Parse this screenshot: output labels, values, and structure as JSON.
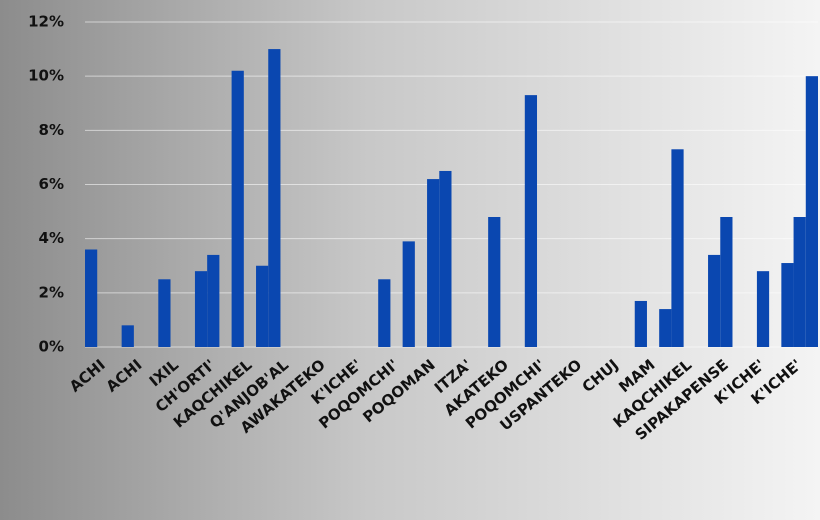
{
  "chart_data": {
    "type": "bar",
    "categories": [
      "ACHI",
      "ACHI",
      "IXIL",
      "CH'ORTI'",
      "KAQCHIKEL",
      "Q'ANJOB'AL",
      "AWAKATEKO",
      "K'ICHE'",
      "POQOMCHI'",
      "POQOMAN",
      "ITZA'",
      "AKATEKO",
      "POQOMCHI'",
      "USPANTEKO",
      "CHUJ",
      "MAM",
      "KAQCHIKEL",
      "SIPAKAPENSE",
      "K'ICHE'",
      "K'ICHE'"
    ],
    "series": [
      {
        "color": "#0a47b0",
        "values": [
          3.6,
          0.8,
          2.5,
          2.8,
          10.2,
          11.0,
          null,
          null,
          2.5,
          null,
          null,
          4.8,
          9.3,
          null,
          null,
          1.7,
          7.3,
          3.4,
          null,
          3.1
        ]
      },
      {
        "color": "#0a47b0",
        "values": [
          null,
          null,
          null,
          3.4,
          null,
          null,
          null,
          null,
          null,
          6.2,
          null,
          null,
          null,
          null,
          null,
          null,
          null,
          4.8,
          2.8,
          4.8
        ]
      },
      {
        "color": "#0a47b0",
        "values": [
          null,
          null,
          null,
          null,
          3.0,
          null,
          null,
          null,
          3.9,
          6.5,
          null,
          null,
          null,
          null,
          null,
          1.4,
          null,
          null,
          null,
          10.0
        ]
      }
    ],
    "ylim": [
      0,
      12
    ],
    "yticks": [
      {
        "value": 0,
        "label": "0%"
      },
      {
        "value": 2,
        "label": "2%"
      },
      {
        "value": 4,
        "label": "4%"
      },
      {
        "value": 6,
        "label": "6%"
      },
      {
        "value": 8,
        "label": "8%"
      },
      {
        "value": 10,
        "label": "10%"
      },
      {
        "value": 12,
        "label": "12%"
      }
    ],
    "grid": true
  }
}
